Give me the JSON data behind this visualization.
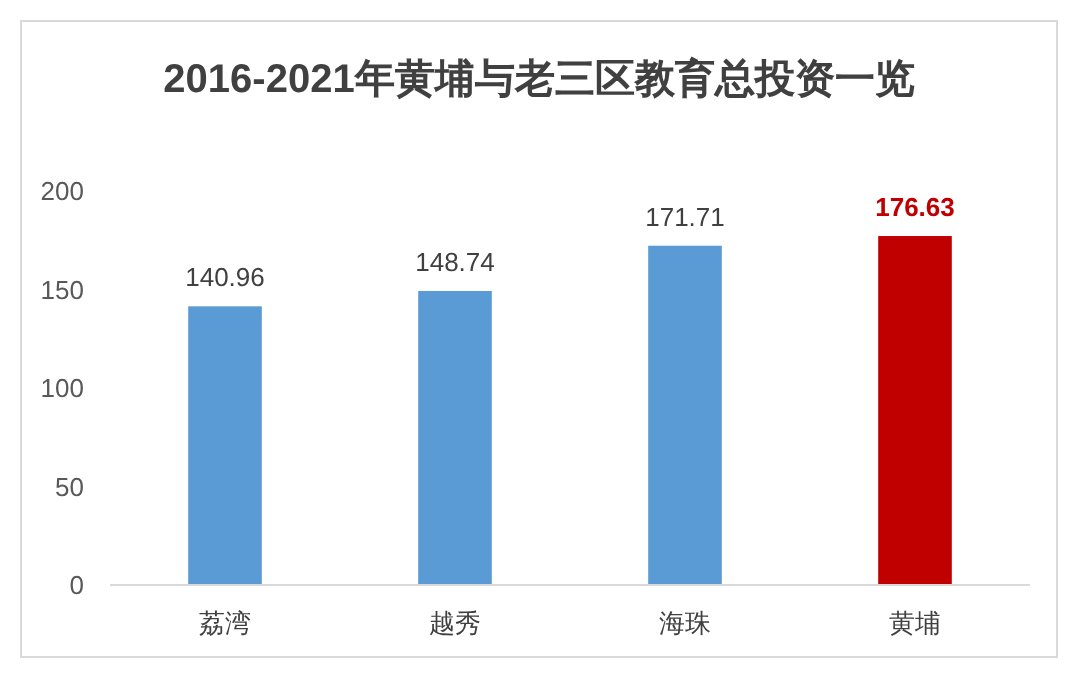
{
  "chart_data": {
    "type": "bar",
    "title": "2016-2021年黄埔与老三区教育总投资一览",
    "categories": [
      "荔湾",
      "越秀",
      "海珠",
      "黄埔"
    ],
    "values": [
      140.96,
      148.74,
      171.71,
      176.63
    ],
    "colors": [
      "#5b9bd5",
      "#5b9bd5",
      "#5b9bd5",
      "#c00000"
    ],
    "ylim": [
      0,
      200
    ],
    "yticks": [
      0,
      50,
      100,
      150,
      200
    ],
    "data_labels": true,
    "grid": false
  }
}
